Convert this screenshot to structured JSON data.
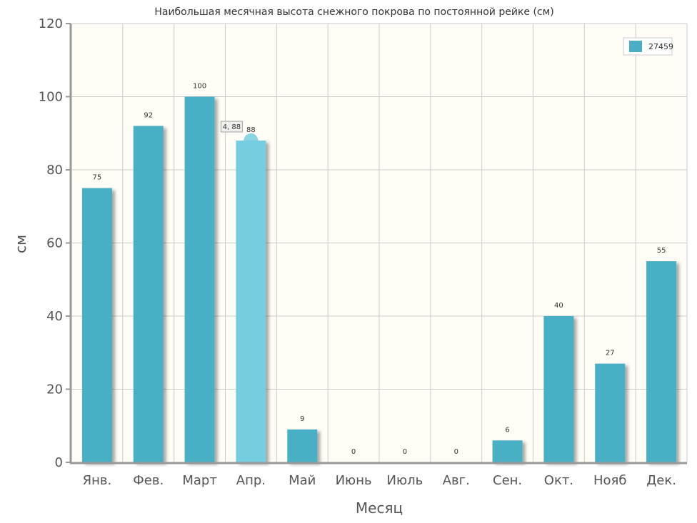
{
  "chart_data": {
    "type": "bar",
    "title": "Наибольшая месячная высота снежного покрова по постоянной рейке (см)",
    "xlabel": "Месяц",
    "ylabel": "см",
    "ylim": [
      0,
      120
    ],
    "yticks": [
      0,
      20,
      40,
      60,
      80,
      100,
      120
    ],
    "categories": [
      "Янв.",
      "Фев.",
      "Март",
      "Апр.",
      "Май",
      "Июнь",
      "Июль",
      "Авг.",
      "Сен.",
      "Окт.",
      "Нояб",
      "Дек."
    ],
    "series": [
      {
        "name": "27459",
        "color": "#4aafc4",
        "values": [
          75,
          92,
          100,
          88,
          9,
          0,
          0,
          0,
          6,
          40,
          27,
          55
        ]
      }
    ],
    "grid": true,
    "legend_position": "top-right",
    "highlight": {
      "index": 3,
      "color": "#76cde0",
      "tooltip": "4, 88"
    },
    "colors": {
      "plot_background": "#fffdf5",
      "grid": "#cccccc",
      "axis": "#999999"
    }
  }
}
